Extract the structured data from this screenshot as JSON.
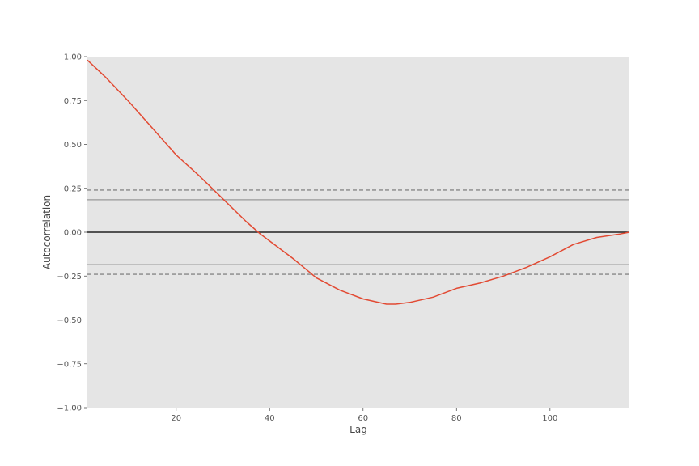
{
  "chart_data": {
    "type": "line",
    "title": "",
    "xlabel": "Lag",
    "ylabel": "Autocorrelation",
    "xlim": [
      1,
      117
    ],
    "ylim": [
      -1.0,
      1.0
    ],
    "xticks": [
      {
        "value": 20,
        "label": "20"
      },
      {
        "value": 40,
        "label": "40"
      },
      {
        "value": 60,
        "label": "60"
      },
      {
        "value": 80,
        "label": "80"
      },
      {
        "value": 100,
        "label": "100"
      }
    ],
    "yticks": [
      {
        "value": 1.0,
        "label": "1.00"
      },
      {
        "value": 0.75,
        "label": "0.75"
      },
      {
        "value": 0.5,
        "label": "0.50"
      },
      {
        "value": 0.25,
        "label": "0.25"
      },
      {
        "value": 0.0,
        "label": "0.00"
      },
      {
        "value": -0.25,
        "label": "−0.25"
      },
      {
        "value": -0.5,
        "label": "−0.50"
      },
      {
        "value": -0.75,
        "label": "−0.75"
      },
      {
        "value": -1.0,
        "label": "−1.00"
      }
    ],
    "grid": false,
    "reference_lines": [
      {
        "y": 0.24,
        "style": "dashed",
        "color": "#888888"
      },
      {
        "y": 0.185,
        "style": "solid",
        "color": "#999999"
      },
      {
        "y": 0.0,
        "style": "solid",
        "color": "#222222"
      },
      {
        "y": -0.185,
        "style": "solid",
        "color": "#999999"
      },
      {
        "y": -0.24,
        "style": "dashed",
        "color": "#888888"
      }
    ],
    "series": [
      {
        "color": "#E24A33",
        "x": [
          1,
          5,
          10,
          15,
          20,
          25,
          30,
          35,
          38,
          40,
          45,
          50,
          55,
          60,
          65,
          67,
          70,
          75,
          80,
          85,
          90,
          95,
          100,
          105,
          110,
          115,
          117
        ],
        "y": [
          0.98,
          0.88,
          0.74,
          0.59,
          0.44,
          0.32,
          0.19,
          0.06,
          -0.01,
          -0.05,
          -0.15,
          -0.26,
          -0.33,
          -0.38,
          -0.41,
          -0.41,
          -0.4,
          -0.37,
          -0.32,
          -0.29,
          -0.25,
          -0.2,
          -0.14,
          -0.07,
          -0.03,
          -0.01,
          0.0
        ]
      }
    ]
  },
  "colors": {
    "plot_background": "#E5E5E5",
    "page_background": "#FFFFFF"
  }
}
